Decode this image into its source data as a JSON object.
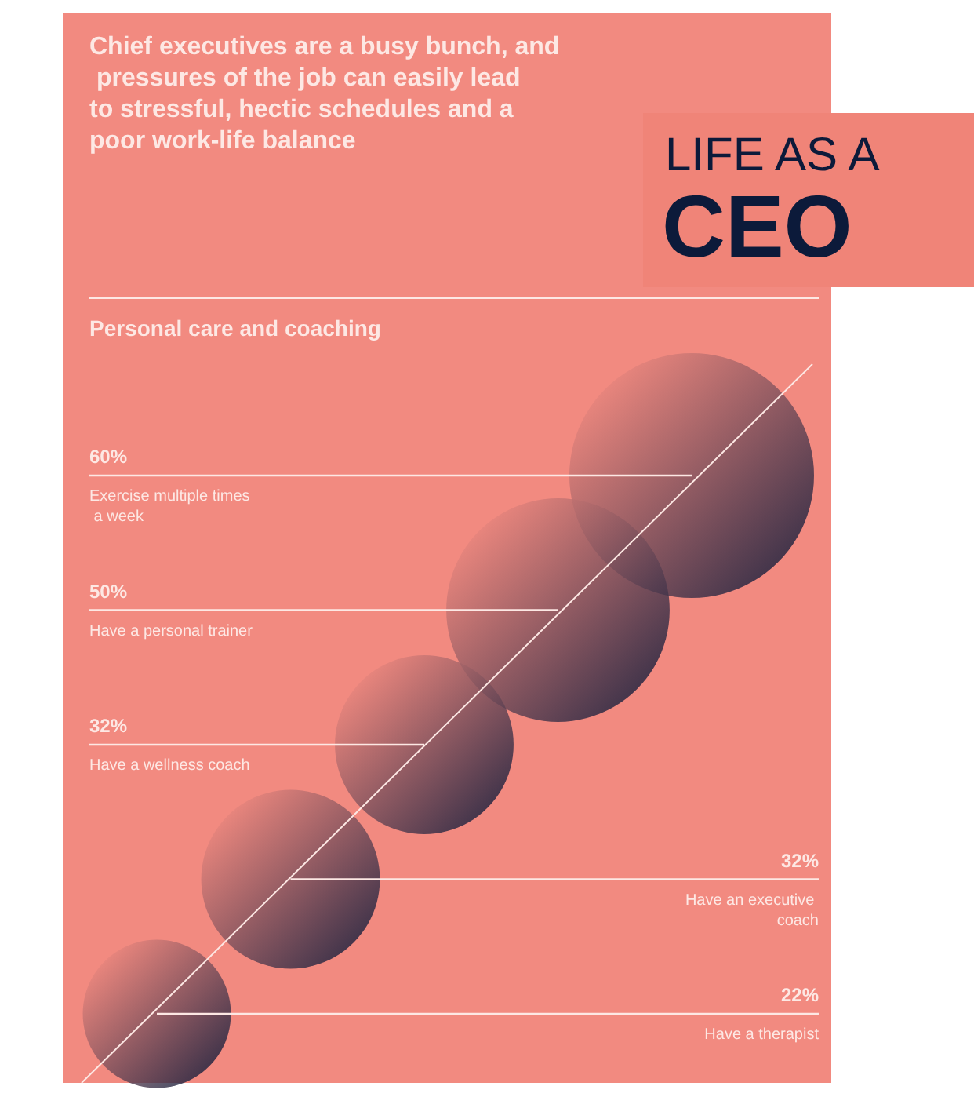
{
  "chart_data": {
    "type": "other",
    "title": "LIFE AS A CEO",
    "subtitle": "Chief executives are a busy bunch, and pressures of the job can easily lead to stressful, hectic schedules and a poor work-life balance",
    "annotations": [
      "Personal care and coaching"
    ],
    "categories": [
      "Exercise multiple times a week",
      "Have a personal trainer",
      "Have a wellness coach",
      "Have an executive coach",
      "Have a therapist"
    ],
    "values": [
      60,
      50,
      32,
      32,
      22
    ],
    "value_labels": [
      "60%",
      "50%",
      "32%",
      "32%",
      "22%"
    ],
    "colors": [
      "#0c1a3a",
      "#0c1a3a",
      "#0c1a3a",
      "#0c1a3a",
      "#0c1a3a"
    ]
  }
}
